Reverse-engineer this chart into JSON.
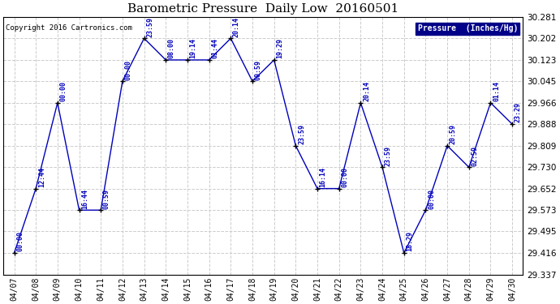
{
  "title": "Barometric Pressure  Daily Low  20160501",
  "copyright": "Copyright 2016 Cartronics.com",
  "legend_label": "Pressure  (Inches/Hg)",
  "background_color": "#ffffff",
  "plot_bg_color": "#ffffff",
  "line_color": "#0000bb",
  "marker_color": "#000000",
  "grid_color": "#cccccc",
  "dates": [
    "04/07",
    "04/08",
    "04/09",
    "04/10",
    "04/11",
    "04/12",
    "04/13",
    "04/14",
    "04/15",
    "04/16",
    "04/17",
    "04/18",
    "04/19",
    "04/20",
    "04/21",
    "04/22",
    "04/23",
    "04/24",
    "04/25",
    "04/26",
    "04/27",
    "04/28",
    "04/29",
    "04/30"
  ],
  "values": [
    29.416,
    29.652,
    29.966,
    29.573,
    29.573,
    30.045,
    30.202,
    30.123,
    30.123,
    30.123,
    30.202,
    30.045,
    30.123,
    29.809,
    29.652,
    29.652,
    29.966,
    29.73,
    29.416,
    29.573,
    29.809,
    29.73,
    29.966,
    29.888
  ],
  "time_labels": [
    "00:00",
    "12:44",
    "00:00",
    "16:44",
    "00:59",
    "00:00",
    "23:59",
    "08:00",
    "19:14",
    "01:44",
    "20:14",
    "00:59",
    "19:29",
    "23:59",
    "16:14",
    "00:00",
    "20:14",
    "23:59",
    "18:29",
    "00:00",
    "20:59",
    "02:59",
    "01:14",
    "23:29"
  ],
  "ylim_min": 29.337,
  "ylim_max": 30.281,
  "yticks": [
    29.337,
    29.416,
    29.495,
    29.573,
    29.652,
    29.73,
    29.809,
    29.888,
    29.966,
    30.045,
    30.123,
    30.202,
    30.281
  ]
}
